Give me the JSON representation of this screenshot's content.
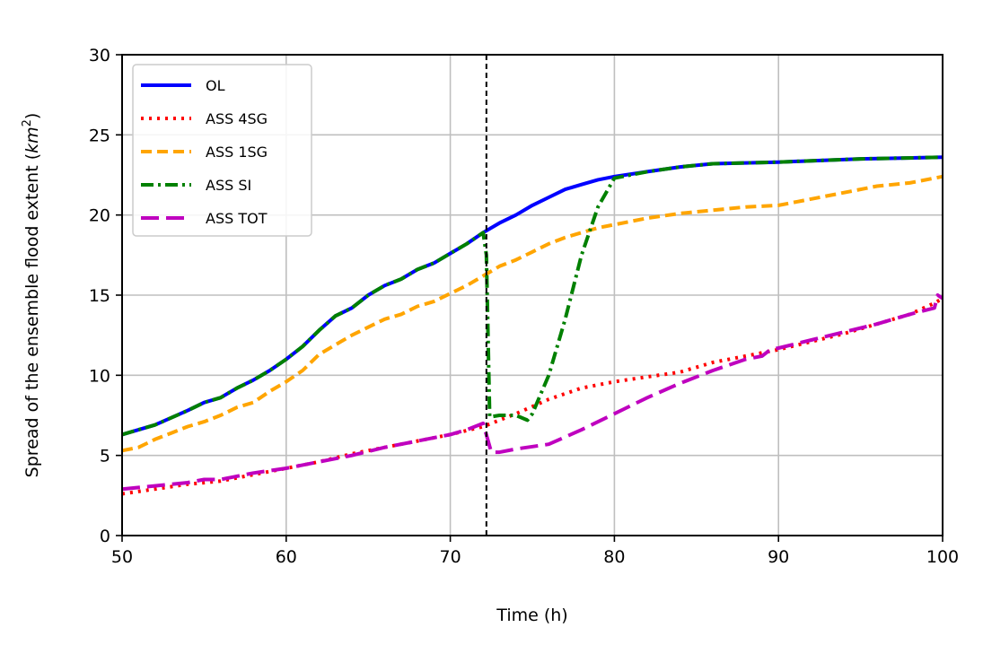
{
  "chart_data": {
    "type": "line",
    "title": "",
    "xlabel": "Time (h)",
    "ylabel": "Spread of the ensemble flood extent (km²)",
    "ylabel_prefix": "Spread of the ensemble flood extent (",
    "ylabel_unit": "km",
    "ylabel_sup": "2",
    "ylabel_suffix": ")",
    "xlim": [
      50,
      100
    ],
    "ylim": [
      0,
      30
    ],
    "xticks": [
      50,
      60,
      70,
      80,
      90,
      100
    ],
    "yticks": [
      0,
      5,
      10,
      15,
      20,
      25,
      30
    ],
    "grid": true,
    "legend_placement": "top-left",
    "vline": {
      "x": 72.2,
      "style": "dashed",
      "color": "#000000"
    },
    "series": [
      {
        "name": "OL",
        "color": "#0000ff",
        "dash": "solid",
        "x": [
          50,
          52,
          54,
          55,
          56,
          57,
          58,
          59,
          60,
          61,
          62,
          63,
          64,
          65,
          66,
          67,
          68,
          69,
          70,
          71,
          72,
          73,
          74,
          75,
          76,
          77,
          78,
          79,
          80,
          82,
          84,
          86,
          90,
          95,
          100
        ],
        "y": [
          6.3,
          6.9,
          7.8,
          8.3,
          8.6,
          9.2,
          9.7,
          10.3,
          11.0,
          11.8,
          12.8,
          13.7,
          14.2,
          15.0,
          15.6,
          16.0,
          16.6,
          17.0,
          17.6,
          18.2,
          18.9,
          19.5,
          20.0,
          20.6,
          21.1,
          21.6,
          21.9,
          22.2,
          22.4,
          22.7,
          23.0,
          23.2,
          23.3,
          23.5,
          23.6
        ]
      },
      {
        "name": "ASS 4SG",
        "color": "#ff0000",
        "dash": "dotted",
        "x": [
          50,
          52,
          54,
          56,
          58,
          60,
          62,
          64,
          66,
          68,
          70,
          72,
          74,
          76,
          78,
          80,
          82,
          84,
          86,
          88,
          90,
          92,
          94,
          96,
          98,
          99.5,
          100
        ],
        "y": [
          2.6,
          2.9,
          3.2,
          3.4,
          3.8,
          4.2,
          4.6,
          5.1,
          5.5,
          5.9,
          6.3,
          6.8,
          7.6,
          8.5,
          9.2,
          9.6,
          9.9,
          10.2,
          10.8,
          11.2,
          11.6,
          12.1,
          12.6,
          13.2,
          13.8,
          14.5,
          14.8
        ]
      },
      {
        "name": "ASS 1SG",
        "color": "#ffa500",
        "dash": "dashed",
        "x": [
          50,
          51,
          52,
          53,
          54,
          55,
          56,
          57,
          58,
          59,
          60,
          61,
          62,
          63,
          64,
          65,
          66,
          67,
          68,
          69,
          70,
          71,
          72,
          73,
          74,
          75,
          76,
          77,
          78,
          79,
          80,
          82,
          84,
          86,
          88,
          90,
          92,
          94,
          96,
          98,
          100
        ],
        "y": [
          5.3,
          5.5,
          6.0,
          6.4,
          6.8,
          7.1,
          7.5,
          8.0,
          8.3,
          9.0,
          9.6,
          10.3,
          11.3,
          11.9,
          12.5,
          13.0,
          13.5,
          13.8,
          14.3,
          14.6,
          15.1,
          15.6,
          16.2,
          16.8,
          17.2,
          17.7,
          18.2,
          18.6,
          18.9,
          19.2,
          19.4,
          19.8,
          20.1,
          20.3,
          20.5,
          20.6,
          21.0,
          21.4,
          21.8,
          22.0,
          22.4
        ]
      },
      {
        "name": "ASS SI",
        "color": "#008000",
        "dash": "dashdot",
        "x": [
          50,
          52,
          54,
          55,
          56,
          57,
          58,
          59,
          60,
          61,
          62,
          63,
          64,
          65,
          66,
          67,
          68,
          69,
          70,
          71,
          72,
          72.2,
          72.4,
          73,
          74,
          74.7,
          75,
          76,
          77,
          78,
          79,
          80,
          82,
          84,
          86,
          90,
          95,
          100
        ],
        "y": [
          6.3,
          6.9,
          7.8,
          8.3,
          8.6,
          9.2,
          9.7,
          10.3,
          11.0,
          11.8,
          12.8,
          13.7,
          14.2,
          15.0,
          15.6,
          16.0,
          16.6,
          17.0,
          17.6,
          18.2,
          18.9,
          17.5,
          7.4,
          7.5,
          7.5,
          7.2,
          7.6,
          10.0,
          13.5,
          17.5,
          20.5,
          22.3,
          22.7,
          23.0,
          23.2,
          23.3,
          23.5,
          23.6
        ]
      },
      {
        "name": "ASS TOT",
        "color": "#bf00bf",
        "dash": "longdash",
        "x": [
          50,
          52,
          54,
          55,
          56,
          58,
          60,
          62,
          64,
          66,
          68,
          70,
          71,
          72,
          72.5,
          73,
          74,
          76,
          78,
          80,
          82,
          84,
          86,
          88,
          89,
          89.5,
          90,
          92,
          94,
          96,
          98,
          99.5,
          99.7,
          100
        ],
        "y": [
          2.9,
          3.1,
          3.3,
          3.5,
          3.5,
          3.9,
          4.2,
          4.6,
          5.0,
          5.5,
          5.9,
          6.3,
          6.6,
          7.0,
          5.2,
          5.2,
          5.4,
          5.7,
          6.6,
          7.6,
          8.6,
          9.5,
          10.3,
          11.0,
          11.2,
          11.6,
          11.7,
          12.2,
          12.7,
          13.2,
          13.8,
          14.2,
          15.0,
          14.8
        ]
      }
    ]
  }
}
